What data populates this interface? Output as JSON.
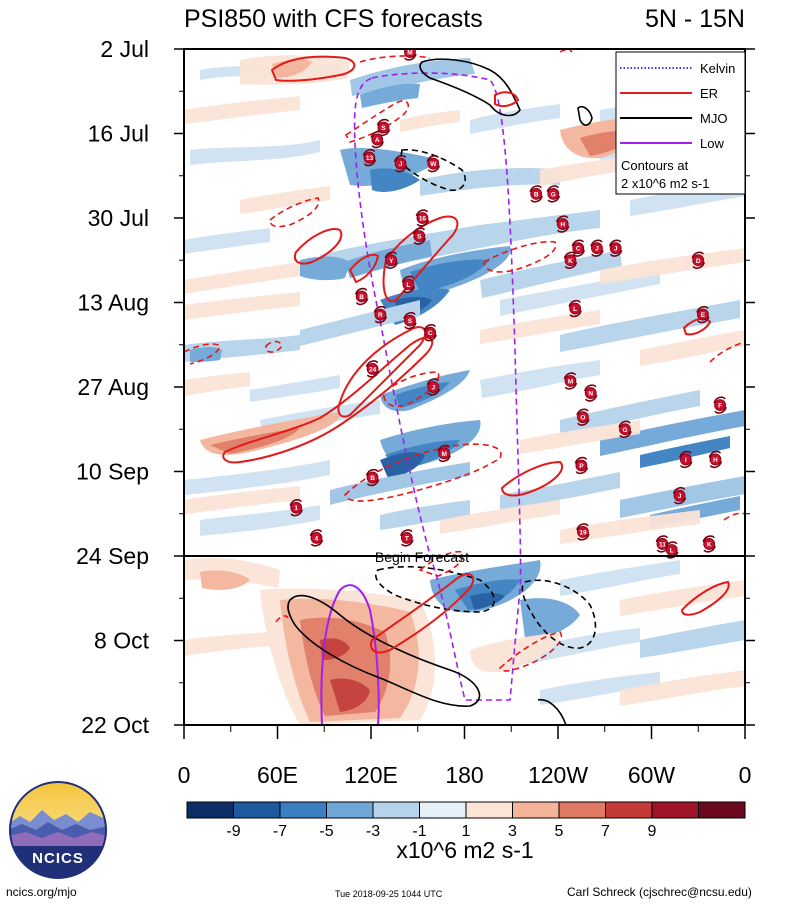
{
  "chart_data": {
    "type": "heatmap",
    "title_left": "PSI850 with CFS forecasts",
    "title_right": "5N - 15N",
    "y_labels": [
      "2 Jul",
      "16 Jul",
      "30 Jul",
      "13 Aug",
      "27 Aug",
      "10 Sep",
      "24 Sep",
      "8 Oct",
      "22 Oct"
    ],
    "y_days": [
      0,
      14,
      28,
      42,
      56,
      70,
      84,
      98,
      112
    ],
    "x_labels": [
      "0",
      "60E",
      "120E",
      "180",
      "120W",
      "60W",
      "0"
    ],
    "x_lon": [
      0,
      60,
      120,
      180,
      240,
      300,
      360
    ],
    "forecast_label": "Begin Forecast",
    "forecast_day": 84,
    "legend": {
      "entries": [
        {
          "name": "Kelvin",
          "color": "#3a3af0",
          "style": "dotted"
        },
        {
          "name": "ER",
          "color": "#e21a1a",
          "style": "solid"
        },
        {
          "name": "MJO",
          "color": "#000000",
          "style": "solid"
        },
        {
          "name": "Low",
          "color": "#a020f0",
          "style": "solid"
        }
      ],
      "note_line1": "Contours at",
      "note_line2": "2 x10^6 m2 s-1"
    },
    "colorbar": {
      "ticks": [
        "-9",
        "-7",
        "-5",
        "-3",
        "-1",
        "1",
        "3",
        "5",
        "7",
        "9"
      ],
      "colors": [
        "#0b2f64",
        "#1e5aa0",
        "#3a7fc0",
        "#6fa6d6",
        "#b5d3ea",
        "#e6f0f8",
        "#fbe3d6",
        "#f4b49a",
        "#e07a64",
        "#c43a36",
        "#a0142a",
        "#6b0a1e"
      ],
      "label": "x10^6 m2 s-1"
    },
    "storm_markers": [
      {
        "label": "M",
        "lon": 145,
        "day": 0.5
      },
      {
        "label": "S",
        "lon": 128,
        "day": 13
      },
      {
        "label": "A",
        "lon": 124,
        "day": 15
      },
      {
        "label": "13",
        "lon": 119,
        "day": 18
      },
      {
        "label": "J",
        "lon": 139,
        "day": 19
      },
      {
        "label": "W",
        "lon": 160,
        "day": 19
      },
      {
        "label": "B",
        "lon": 226,
        "day": 24
      },
      {
        "label": "G",
        "lon": 237,
        "day": 24
      },
      {
        "label": "16",
        "lon": 153,
        "day": 28
      },
      {
        "label": "H",
        "lon": 243,
        "day": 29
      },
      {
        "label": "S",
        "lon": 151,
        "day": 31
      },
      {
        "label": "C",
        "lon": 253,
        "day": 33
      },
      {
        "label": "J",
        "lon": 265,
        "day": 33
      },
      {
        "label": "J",
        "lon": 277,
        "day": 33
      },
      {
        "label": "Y",
        "lon": 133,
        "day": 35
      },
      {
        "label": "K",
        "lon": 248,
        "day": 35
      },
      {
        "label": "D",
        "lon": 330,
        "day": 35
      },
      {
        "label": "L",
        "lon": 144,
        "day": 39
      },
      {
        "label": "B",
        "lon": 114,
        "day": 41
      },
      {
        "label": "L",
        "lon": 251,
        "day": 43
      },
      {
        "label": "R",
        "lon": 126,
        "day": 44
      },
      {
        "label": "S",
        "lon": 145,
        "day": 45
      },
      {
        "label": "E",
        "lon": 333,
        "day": 44
      },
      {
        "label": "C",
        "lon": 158,
        "day": 47
      },
      {
        "label": "24",
        "lon": 121,
        "day": 53
      },
      {
        "label": "M",
        "lon": 248,
        "day": 55
      },
      {
        "label": "J",
        "lon": 160,
        "day": 56
      },
      {
        "label": "N",
        "lon": 261,
        "day": 57
      },
      {
        "label": "F",
        "lon": 344,
        "day": 59
      },
      {
        "label": "O",
        "lon": 256,
        "day": 61
      },
      {
        "label": "G",
        "lon": 283,
        "day": 63
      },
      {
        "label": "M",
        "lon": 167,
        "day": 67
      },
      {
        "label": "I",
        "lon": 322,
        "day": 68
      },
      {
        "label": "H",
        "lon": 341,
        "day": 68
      },
      {
        "label": "P",
        "lon": 255,
        "day": 69
      },
      {
        "label": "B",
        "lon": 121,
        "day": 71
      },
      {
        "label": "J",
        "lon": 318,
        "day": 74
      },
      {
        "label": "1",
        "lon": 72,
        "day": 76
      },
      {
        "label": "19",
        "lon": 256,
        "day": 80
      },
      {
        "label": "4",
        "lon": 85,
        "day": 81
      },
      {
        "label": "T",
        "lon": 143,
        "day": 81
      },
      {
        "label": "11",
        "lon": 307,
        "day": 82
      },
      {
        "label": "L",
        "lon": 313,
        "day": 83
      },
      {
        "label": "K",
        "lon": 337,
        "day": 82
      }
    ]
  },
  "footer": {
    "left": "ncics.org/mjo",
    "center": "Tue 2018-09-25 1044 UTC",
    "right": "Carl Schreck (cjschrec@ncsu.edu)",
    "logo_text": "NCICS"
  }
}
